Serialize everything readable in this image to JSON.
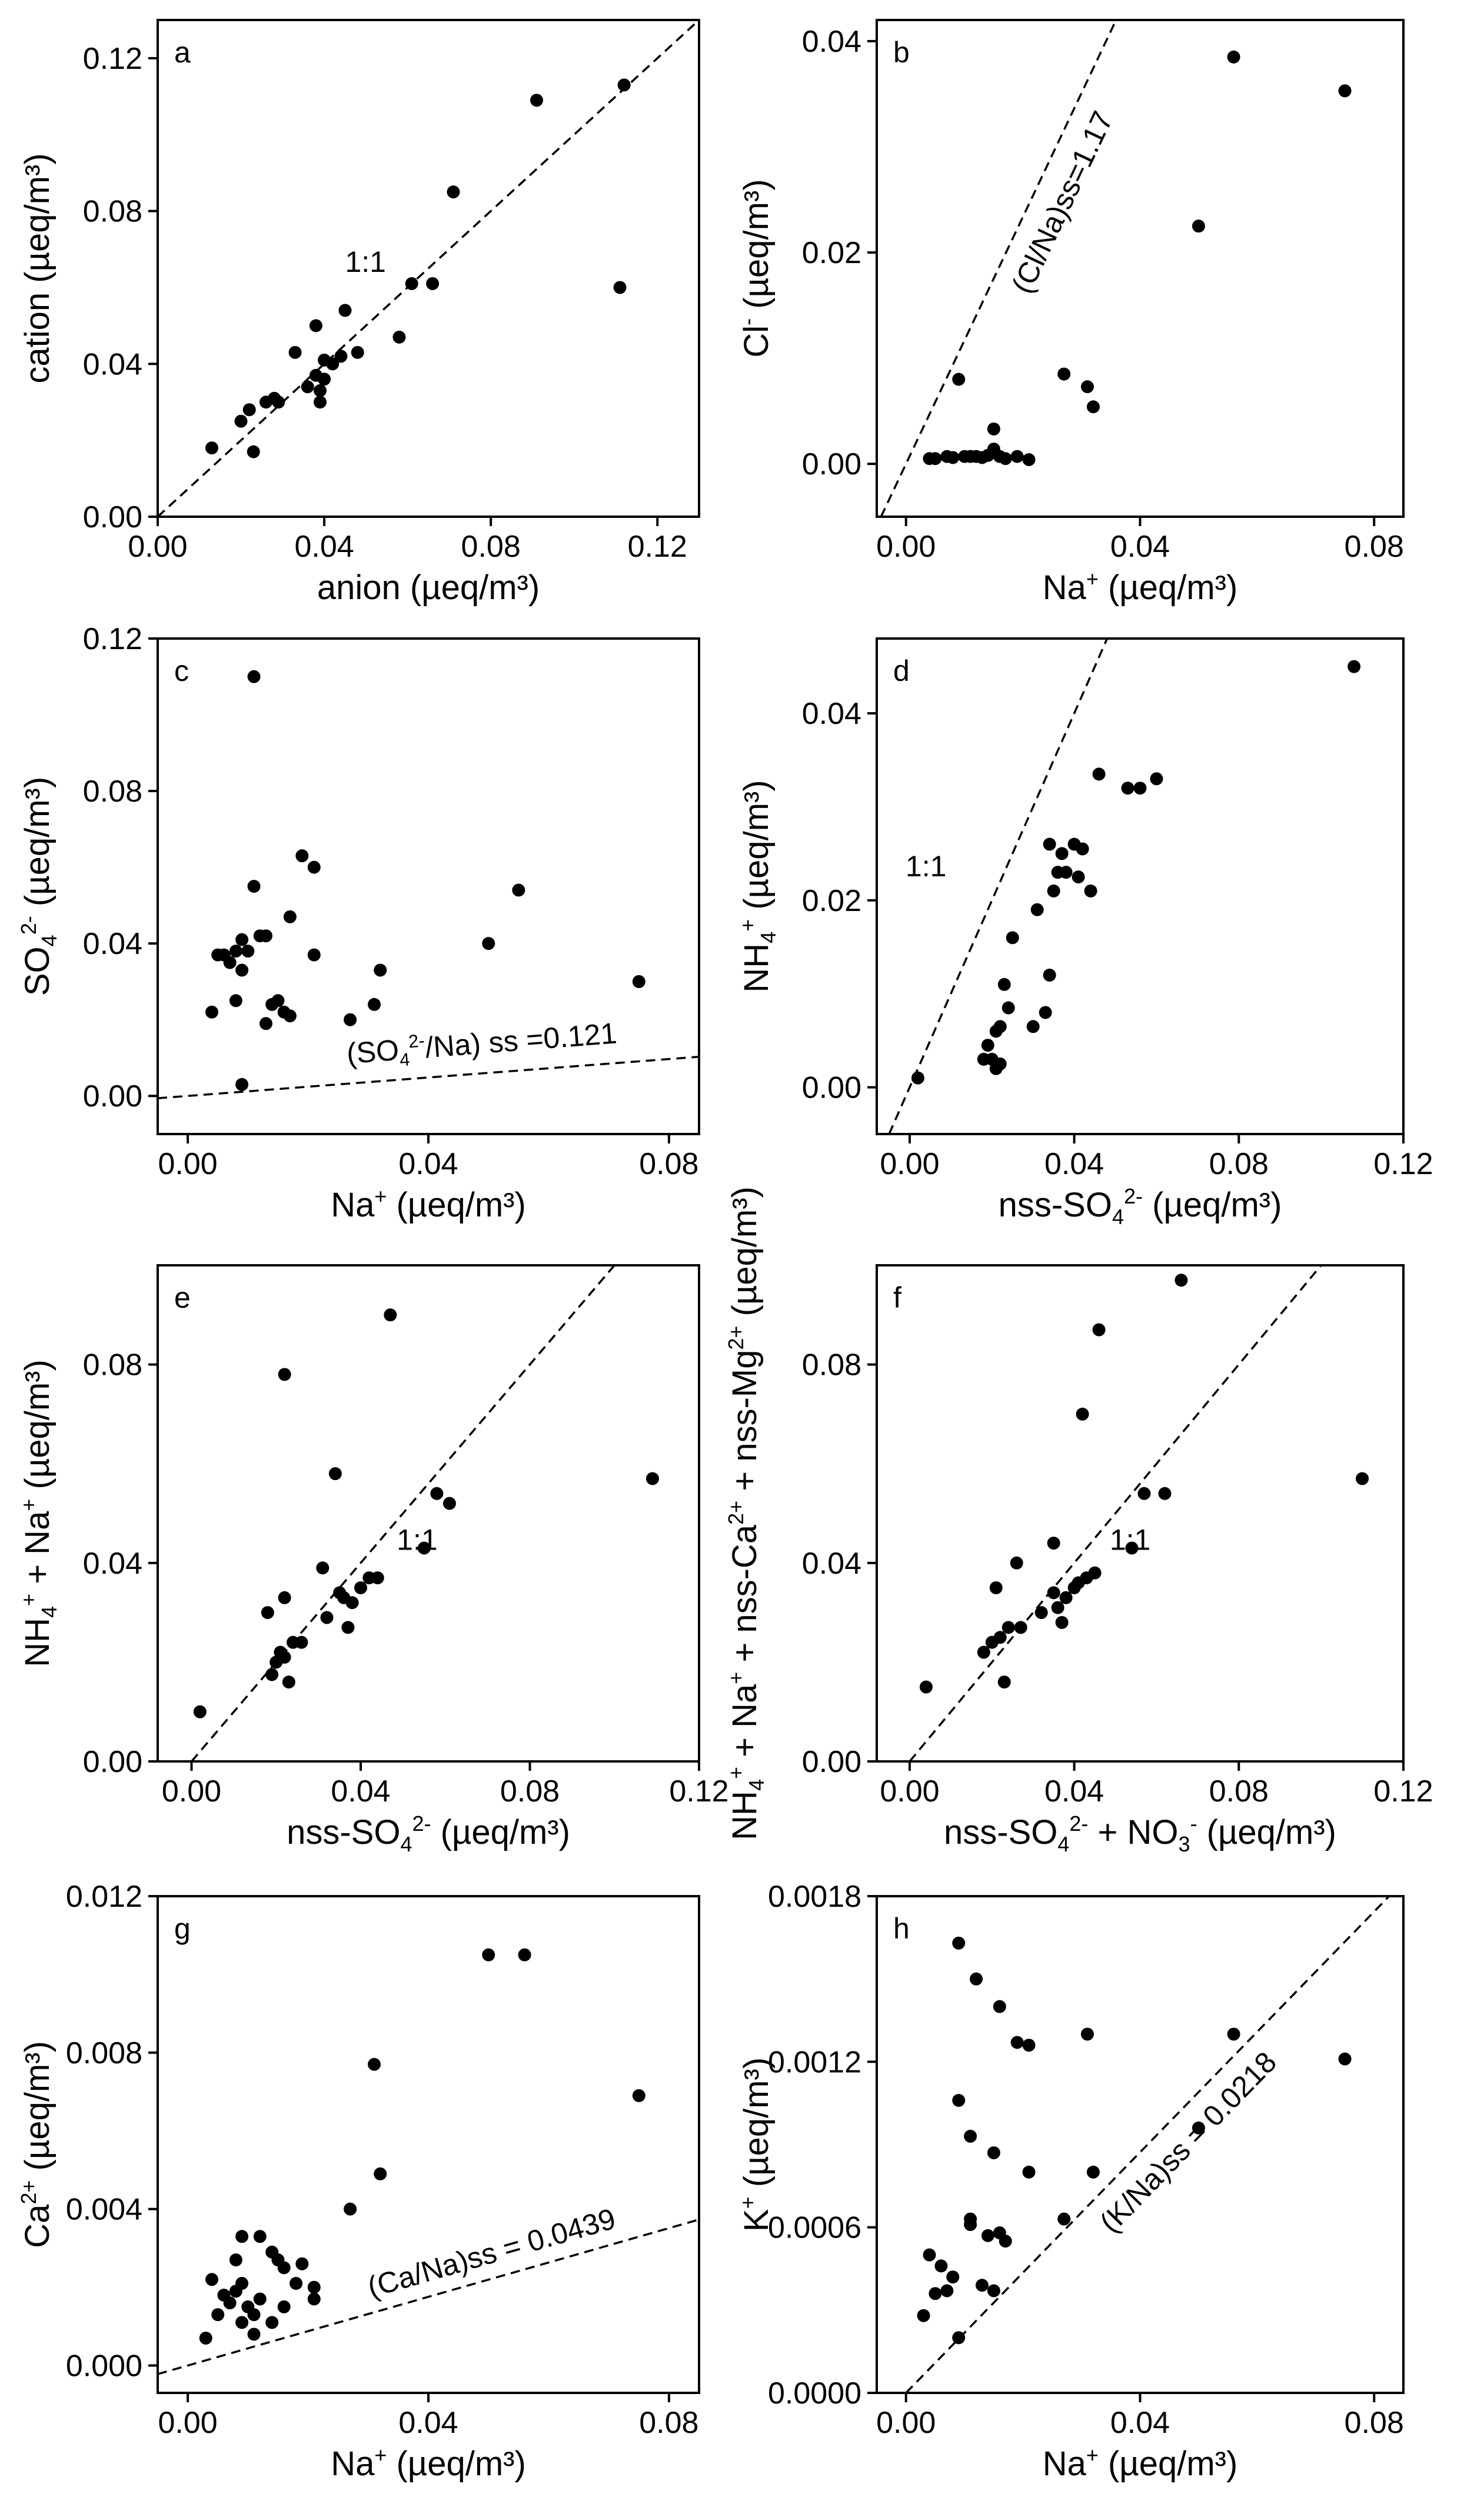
{
  "figure": {
    "panel_count": 8
  },
  "chart_data": [
    {
      "panel": "a",
      "type": "scatter",
      "xlabel": "anion (µeq/m³)",
      "ylabel": "cation (µeq/m³)",
      "xlim": [
        0,
        0.13
      ],
      "ylim": [
        0,
        0.13
      ],
      "xticks": [
        "0.00",
        "0.04",
        "0.08",
        "0.12"
      ],
      "yticks": [
        "0.00",
        "0.04",
        "0.08",
        "0.12"
      ],
      "xtick_values": [
        0,
        0.04,
        0.08,
        0.12
      ],
      "ytick_values": [
        0,
        0.04,
        0.08,
        0.12
      ],
      "reference_line": {
        "slope": 1.0,
        "label": "1:1"
      },
      "points": [
        [
          0.013,
          0.018
        ],
        [
          0.02,
          0.025
        ],
        [
          0.022,
          0.028
        ],
        [
          0.023,
          0.017
        ],
        [
          0.026,
          0.03
        ],
        [
          0.028,
          0.031
        ],
        [
          0.029,
          0.03
        ],
        [
          0.033,
          0.043
        ],
        [
          0.036,
          0.034
        ],
        [
          0.038,
          0.05
        ],
        [
          0.038,
          0.037
        ],
        [
          0.039,
          0.033
        ],
        [
          0.039,
          0.03
        ],
        [
          0.04,
          0.041
        ],
        [
          0.04,
          0.036
        ],
        [
          0.042,
          0.04
        ],
        [
          0.044,
          0.042
        ],
        [
          0.045,
          0.054
        ],
        [
          0.048,
          0.043
        ],
        [
          0.058,
          0.047
        ],
        [
          0.061,
          0.061
        ],
        [
          0.066,
          0.061
        ],
        [
          0.071,
          0.085
        ],
        [
          0.091,
          0.109
        ],
        [
          0.112,
          0.113
        ],
        [
          0.111,
          0.06
        ]
      ]
    },
    {
      "panel": "b",
      "type": "scatter",
      "xlabel": "Na⁺ (µeq/m³)",
      "ylabel": "Cl⁻ (µeq/m³)",
      "xlim": [
        -0.005,
        0.085
      ],
      "ylim": [
        -0.005,
        0.042
      ],
      "xticks": [
        "0.00",
        "0.04",
        "0.08"
      ],
      "yticks": [
        "0.00",
        "0.02",
        "0.04"
      ],
      "xtick_values": [
        0,
        0.04,
        0.08
      ],
      "ytick_values": [
        0,
        0.02,
        0.04
      ],
      "reference_line": {
        "slope": 1.17,
        "label": "(Cl/Na)ss=1.17"
      },
      "points": [
        [
          0.004,
          0.0005
        ],
        [
          0.005,
          0.0005
        ],
        [
          0.007,
          0.0007
        ],
        [
          0.008,
          0.0006
        ],
        [
          0.009,
          0.008
        ],
        [
          0.01,
          0.0007
        ],
        [
          0.011,
          0.0007
        ],
        [
          0.012,
          0.0007
        ],
        [
          0.013,
          0.0006
        ],
        [
          0.014,
          0.0008
        ],
        [
          0.015,
          0.0014
        ],
        [
          0.015,
          0.0033
        ],
        [
          0.016,
          0.0007
        ],
        [
          0.017,
          0.0005
        ],
        [
          0.019,
          0.0007
        ],
        [
          0.021,
          0.0004
        ],
        [
          0.027,
          0.0085
        ],
        [
          0.031,
          0.0073
        ],
        [
          0.032,
          0.0054
        ],
        [
          0.05,
          0.0225
        ],
        [
          0.056,
          0.0385
        ],
        [
          0.075,
          0.0353
        ]
      ]
    },
    {
      "panel": "c",
      "type": "scatter",
      "xlabel": "Na⁺ (µeq/m³)",
      "ylabel": "SO₄²⁻ (µeq/m³)",
      "xlim": [
        -0.005,
        0.085
      ],
      "ylim": [
        -0.01,
        0.12
      ],
      "xticks": [
        "0.00",
        "0.04",
        "0.08"
      ],
      "yticks": [
        "0.00",
        "0.04",
        "0.08",
        "0.12"
      ],
      "xtick_values": [
        0,
        0.04,
        0.08
      ],
      "ytick_values": [
        0,
        0.04,
        0.08,
        0.12
      ],
      "reference_line": {
        "slope": 0.121,
        "label": "(SO₄²⁻/Na) ss =0.121"
      },
      "points": [
        [
          0.004,
          0.022
        ],
        [
          0.005,
          0.037
        ],
        [
          0.006,
          0.037
        ],
        [
          0.007,
          0.035
        ],
        [
          0.008,
          0.038
        ],
        [
          0.008,
          0.025
        ],
        [
          0.009,
          0.041
        ],
        [
          0.009,
          0.003
        ],
        [
          0.009,
          0.033
        ],
        [
          0.01,
          0.038
        ],
        [
          0.011,
          0.055
        ],
        [
          0.011,
          0.11
        ],
        [
          0.012,
          0.042
        ],
        [
          0.013,
          0.019
        ],
        [
          0.013,
          0.042
        ],
        [
          0.014,
          0.024
        ],
        [
          0.015,
          0.025
        ],
        [
          0.016,
          0.022
        ],
        [
          0.017,
          0.047
        ],
        [
          0.017,
          0.021
        ],
        [
          0.019,
          0.063
        ],
        [
          0.021,
          0.06
        ],
        [
          0.021,
          0.037
        ],
        [
          0.027,
          0.02
        ],
        [
          0.031,
          0.024
        ],
        [
          0.032,
          0.033
        ],
        [
          0.05,
          0.04
        ],
        [
          0.055,
          0.054
        ],
        [
          0.075,
          0.03
        ]
      ]
    },
    {
      "panel": "d",
      "type": "scatter",
      "xlabel": "nss-SO₄²⁻ (µeq/m³)",
      "ylabel": "NH₄⁺ (µeq/m³)",
      "xlim": [
        -0.008,
        0.12
      ],
      "ylim": [
        -0.005,
        0.048
      ],
      "xticks": [
        "0.00",
        "0.04",
        "0.08",
        "0.12"
      ],
      "yticks": [
        "0.00",
        "0.02",
        "0.04"
      ],
      "xtick_values": [
        0,
        0.04,
        0.08,
        0.12
      ],
      "ytick_values": [
        0,
        0.02,
        0.04
      ],
      "reference_line": {
        "slope": 1.0,
        "label": "1:1"
      },
      "points": [
        [
          0.002,
          0.001
        ],
        [
          0.018,
          0.003
        ],
        [
          0.019,
          0.0045
        ],
        [
          0.02,
          0.003
        ],
        [
          0.021,
          0.006
        ],
        [
          0.021,
          0.002
        ],
        [
          0.022,
          0.0025
        ],
        [
          0.022,
          0.0065
        ],
        [
          0.023,
          0.011
        ],
        [
          0.024,
          0.0085
        ],
        [
          0.025,
          0.016
        ],
        [
          0.03,
          0.0065
        ],
        [
          0.031,
          0.019
        ],
        [
          0.033,
          0.008
        ],
        [
          0.034,
          0.012
        ],
        [
          0.034,
          0.026
        ],
        [
          0.035,
          0.021
        ],
        [
          0.036,
          0.023
        ],
        [
          0.037,
          0.025
        ],
        [
          0.038,
          0.023
        ],
        [
          0.04,
          0.026
        ],
        [
          0.041,
          0.0225
        ],
        [
          0.042,
          0.0255
        ],
        [
          0.044,
          0.021
        ],
        [
          0.046,
          0.0335
        ],
        [
          0.053,
          0.032
        ],
        [
          0.056,
          0.032
        ],
        [
          0.06,
          0.033
        ],
        [
          0.108,
          0.045
        ]
      ]
    },
    {
      "panel": "e",
      "type": "scatter",
      "xlabel": "nss-SO₄²⁻ (µeq/m³)",
      "ylabel": "NH₄⁺ + Na⁺ (µeq/m³)",
      "xlim": [
        -0.008,
        0.12
      ],
      "ylim": [
        0,
        0.1
      ],
      "xticks": [
        "0.00",
        "0.04",
        "0.08",
        "0.12"
      ],
      "yticks": [
        "0.00",
        "0.04",
        "0.08"
      ],
      "xtick_values": [
        0,
        0.04,
        0.08,
        0.12
      ],
      "ytick_values": [
        0,
        0.04,
        0.08
      ],
      "reference_line": {
        "slope": 1.0,
        "label": "1:1"
      },
      "points": [
        [
          0.002,
          0.01
        ],
        [
          0.018,
          0.03
        ],
        [
          0.019,
          0.0175
        ],
        [
          0.02,
          0.02
        ],
        [
          0.021,
          0.022
        ],
        [
          0.022,
          0.033
        ],
        [
          0.022,
          0.021
        ],
        [
          0.022,
          0.078
        ],
        [
          0.023,
          0.016
        ],
        [
          0.024,
          0.024
        ],
        [
          0.026,
          0.024
        ],
        [
          0.031,
          0.039
        ],
        [
          0.032,
          0.029
        ],
        [
          0.034,
          0.058
        ],
        [
          0.035,
          0.034
        ],
        [
          0.036,
          0.033
        ],
        [
          0.037,
          0.027
        ],
        [
          0.038,
          0.032
        ],
        [
          0.04,
          0.035
        ],
        [
          0.042,
          0.037
        ],
        [
          0.044,
          0.037
        ],
        [
          0.047,
          0.09
        ],
        [
          0.055,
          0.043
        ],
        [
          0.058,
          0.054
        ],
        [
          0.061,
          0.052
        ],
        [
          0.109,
          0.057
        ]
      ]
    },
    {
      "panel": "f",
      "type": "scatter",
      "xlabel": "nss-SO₄²⁻ + NO₃⁻ (µeq/m³)",
      "ylabel": "NH₄⁺ + Na⁺ + nss-Ca²⁺ + nss-Mg²⁺ (µeq/m³)",
      "xlim": [
        -0.008,
        0.12
      ],
      "ylim": [
        0,
        0.1
      ],
      "xticks": [
        "0.00",
        "0.04",
        "0.08",
        "0.12"
      ],
      "yticks": [
        "0.00",
        "0.04",
        "0.08"
      ],
      "xtick_values": [
        0,
        0.04,
        0.08,
        0.12
      ],
      "ytick_values": [
        0,
        0.04,
        0.08
      ],
      "reference_line": {
        "slope": 1.0,
        "label": "1:1"
      },
      "points": [
        [
          0.004,
          0.015
        ],
        [
          0.018,
          0.022
        ],
        [
          0.02,
          0.024
        ],
        [
          0.021,
          0.035
        ],
        [
          0.022,
          0.025
        ],
        [
          0.023,
          0.016
        ],
        [
          0.024,
          0.027
        ],
        [
          0.026,
          0.04
        ],
        [
          0.027,
          0.027
        ],
        [
          0.032,
          0.03
        ],
        [
          0.035,
          0.034
        ],
        [
          0.035,
          0.044
        ],
        [
          0.036,
          0.031
        ],
        [
          0.037,
          0.028
        ],
        [
          0.038,
          0.033
        ],
        [
          0.04,
          0.035
        ],
        [
          0.041,
          0.036
        ],
        [
          0.042,
          0.07
        ],
        [
          0.043,
          0.037
        ],
        [
          0.045,
          0.038
        ],
        [
          0.046,
          0.087
        ],
        [
          0.054,
          0.043
        ],
        [
          0.057,
          0.054
        ],
        [
          0.062,
          0.054
        ],
        [
          0.066,
          0.097
        ],
        [
          0.11,
          0.057
        ]
      ]
    },
    {
      "panel": "g",
      "type": "scatter",
      "xlabel": "Na⁺ (µeq/m³)",
      "ylabel": "Ca²⁺ (µeq/m³)",
      "xlim": [
        -0.005,
        0.085
      ],
      "ylim": [
        -0.0007,
        0.012
      ],
      "xticks": [
        "0.00",
        "0.04",
        "0.08"
      ],
      "yticks": [
        "0.000",
        "0.004",
        "0.008",
        "0.012"
      ],
      "xtick_values": [
        0,
        0.04,
        0.08
      ],
      "ytick_values": [
        0,
        0.004,
        0.008,
        0.012
      ],
      "reference_line": {
        "slope": 0.0439,
        "label": "(Ca/Na)ss = 0.0439"
      },
      "points": [
        [
          0.003,
          0.0007
        ],
        [
          0.004,
          0.0022
        ],
        [
          0.005,
          0.0013
        ],
        [
          0.006,
          0.0018
        ],
        [
          0.007,
          0.0016
        ],
        [
          0.008,
          0.0027
        ],
        [
          0.008,
          0.0019
        ],
        [
          0.009,
          0.0011
        ],
        [
          0.009,
          0.0033
        ],
        [
          0.009,
          0.0021
        ],
        [
          0.01,
          0.0015
        ],
        [
          0.011,
          0.0013
        ],
        [
          0.011,
          0.0008
        ],
        [
          0.012,
          0.0033
        ],
        [
          0.012,
          0.0017
        ],
        [
          0.014,
          0.0029
        ],
        [
          0.014,
          0.0011
        ],
        [
          0.015,
          0.0027
        ],
        [
          0.016,
          0.0015
        ],
        [
          0.016,
          0.0025
        ],
        [
          0.018,
          0.0021
        ],
        [
          0.019,
          0.0026
        ],
        [
          0.021,
          0.0017
        ],
        [
          0.021,
          0.002
        ],
        [
          0.027,
          0.004
        ],
        [
          0.031,
          0.0077
        ],
        [
          0.032,
          0.0049
        ],
        [
          0.05,
          0.0105
        ],
        [
          0.056,
          0.0105
        ],
        [
          0.075,
          0.0069
        ]
      ]
    },
    {
      "panel": "h",
      "type": "scatter",
      "xlabel": "Na⁺ (µeq/m³)",
      "ylabel": "K⁺ (µeq/m³)",
      "xlim": [
        -0.005,
        0.085
      ],
      "ylim": [
        0,
        0.0018
      ],
      "xticks": [
        "0.00",
        "0.04",
        "0.08"
      ],
      "yticks": [
        "0.0000",
        "0.0006",
        "0.0012",
        "0.0018"
      ],
      "xtick_values": [
        0,
        0.04,
        0.08
      ],
      "ytick_values": [
        0,
        0.0006,
        0.0012,
        0.0018
      ],
      "reference_line": {
        "slope": 0.0218,
        "label": "(K/Na)ss = 0.0218"
      },
      "points": [
        [
          0.003,
          0.00028
        ],
        [
          0.004,
          0.0005
        ],
        [
          0.005,
          0.00036
        ],
        [
          0.006,
          0.00046
        ],
        [
          0.007,
          0.00037
        ],
        [
          0.008,
          0.00042
        ],
        [
          0.009,
          0.0002
        ],
        [
          0.009,
          0.00106
        ],
        [
          0.009,
          0.00163
        ],
        [
          0.011,
          0.00093
        ],
        [
          0.011,
          0.00063
        ],
        [
          0.011,
          0.00061
        ],
        [
          0.012,
          0.0015
        ],
        [
          0.013,
          0.00039
        ],
        [
          0.014,
          0.00057
        ],
        [
          0.015,
          0.00087
        ],
        [
          0.015,
          0.00037
        ],
        [
          0.016,
          0.0014
        ],
        [
          0.016,
          0.00058
        ],
        [
          0.017,
          0.00055
        ],
        [
          0.019,
          0.00127
        ],
        [
          0.021,
          0.00126
        ],
        [
          0.021,
          0.0008
        ],
        [
          0.027,
          0.00063
        ],
        [
          0.031,
          0.0013
        ],
        [
          0.032,
          0.0008
        ],
        [
          0.05,
          0.00096
        ],
        [
          0.056,
          0.0013
        ],
        [
          0.075,
          0.00121
        ]
      ]
    }
  ]
}
